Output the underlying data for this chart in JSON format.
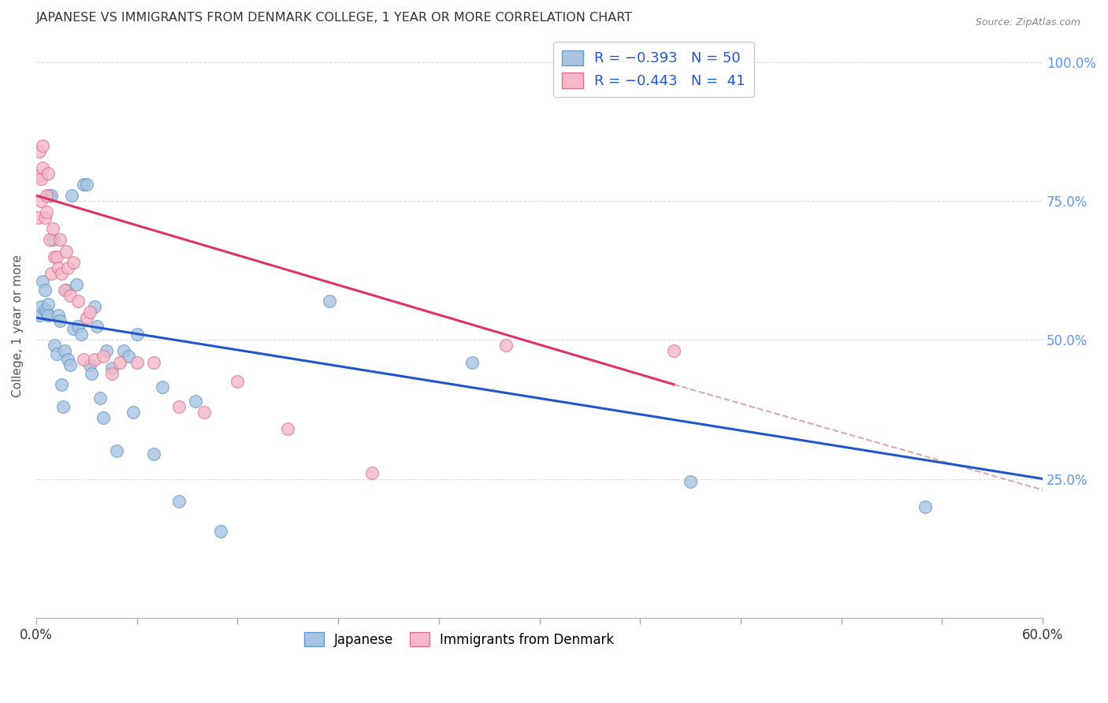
{
  "title": "JAPANESE VS IMMIGRANTS FROM DENMARK COLLEGE, 1 YEAR OR MORE CORRELATION CHART",
  "source": "Source: ZipAtlas.com",
  "ylabel": "College, 1 year or more",
  "xlabel": "",
  "xlim": [
    0.0,
    0.6
  ],
  "ylim": [
    0.0,
    1.05
  ],
  "ytick_labels_right": [
    "100.0%",
    "75.0%",
    "50.0%",
    "25.0%"
  ],
  "ytick_positions_right": [
    1.0,
    0.75,
    0.5,
    0.25
  ],
  "japanese_color": "#a8c4e0",
  "denmark_color": "#f4b8c8",
  "japanese_edge": "#6699cc",
  "denmark_edge": "#e07090",
  "trend_japanese_color": "#2255cc",
  "trend_denmark_color": "#dd3366",
  "trend_dashed_color": "#ddaaaa",
  "background_color": "#ffffff",
  "grid_color": "#dddddd",
  "japanese_x": [
    0.002,
    0.003,
    0.004,
    0.005,
    0.005,
    0.006,
    0.007,
    0.007,
    0.008,
    0.009,
    0.01,
    0.011,
    0.012,
    0.013,
    0.014,
    0.015,
    0.016,
    0.017,
    0.018,
    0.019,
    0.02,
    0.021,
    0.022,
    0.024,
    0.025,
    0.027,
    0.028,
    0.03,
    0.032,
    0.033,
    0.035,
    0.036,
    0.038,
    0.04,
    0.042,
    0.045,
    0.048,
    0.052,
    0.055,
    0.058,
    0.06,
    0.07,
    0.075,
    0.085,
    0.095,
    0.11,
    0.175,
    0.26,
    0.39,
    0.53
  ],
  "japanese_y": [
    0.545,
    0.56,
    0.605,
    0.555,
    0.59,
    0.55,
    0.565,
    0.545,
    0.76,
    0.76,
    0.68,
    0.49,
    0.475,
    0.545,
    0.535,
    0.42,
    0.38,
    0.48,
    0.59,
    0.465,
    0.455,
    0.76,
    0.52,
    0.6,
    0.525,
    0.51,
    0.78,
    0.78,
    0.455,
    0.44,
    0.56,
    0.525,
    0.395,
    0.36,
    0.48,
    0.45,
    0.3,
    0.48,
    0.47,
    0.37,
    0.51,
    0.295,
    0.415,
    0.21,
    0.39,
    0.155,
    0.57,
    0.46,
    0.245,
    0.2
  ],
  "denmark_x": [
    0.001,
    0.002,
    0.002,
    0.003,
    0.003,
    0.004,
    0.004,
    0.005,
    0.006,
    0.006,
    0.007,
    0.008,
    0.009,
    0.01,
    0.011,
    0.012,
    0.013,
    0.014,
    0.015,
    0.017,
    0.018,
    0.019,
    0.02,
    0.022,
    0.025,
    0.028,
    0.03,
    0.032,
    0.035,
    0.04,
    0.045,
    0.05,
    0.06,
    0.07,
    0.085,
    0.1,
    0.12,
    0.15,
    0.2,
    0.28,
    0.38
  ],
  "denmark_y": [
    0.72,
    0.84,
    0.795,
    0.79,
    0.75,
    0.85,
    0.81,
    0.72,
    0.76,
    0.73,
    0.8,
    0.68,
    0.62,
    0.7,
    0.65,
    0.65,
    0.63,
    0.68,
    0.62,
    0.59,
    0.66,
    0.63,
    0.58,
    0.64,
    0.57,
    0.465,
    0.54,
    0.55,
    0.465,
    0.47,
    0.44,
    0.46,
    0.46,
    0.46,
    0.38,
    0.37,
    0.425,
    0.34,
    0.26,
    0.49,
    0.48
  ],
  "trend_japan_x0": 0.0,
  "trend_japan_y0": 0.54,
  "trend_japan_x1": 0.6,
  "trend_japan_y1": 0.25,
  "trend_denmark_x0": 0.0,
  "trend_denmark_y0": 0.76,
  "trend_denmark_x1": 0.38,
  "trend_denmark_y1": 0.42,
  "trend_dashed_x0": 0.38,
  "trend_dashed_y0": 0.42,
  "trend_dashed_x1": 0.6,
  "trend_dashed_y1": 0.23
}
